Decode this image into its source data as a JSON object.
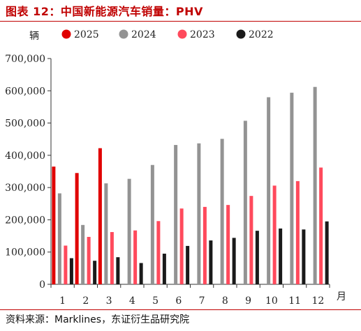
{
  "title": "图表 12：中国新能源汽车销量：PHV",
  "source": "资料来源：Marklines，东证衍生品研究院",
  "chart_data": {
    "type": "bar",
    "title": "中国新能源汽车销量：PHV",
    "ylabel": "辆",
    "xlabel": "月",
    "categories": [
      "1",
      "2",
      "3",
      "4",
      "5",
      "6",
      "7",
      "8",
      "9",
      "10",
      "11",
      "12"
    ],
    "ylim": [
      0,
      700000
    ],
    "yticks": [
      0,
      100000,
      200000,
      300000,
      400000,
      500000,
      600000,
      700000
    ],
    "ytick_labels": [
      "0",
      "100,000",
      "200,000",
      "300,000",
      "400,000",
      "500,000",
      "600,000",
      "700,000"
    ],
    "grid": false,
    "legend_position": "top",
    "series": [
      {
        "name": "2025",
        "color": "#e00000",
        "values": [
          365000,
          345000,
          422000,
          null,
          null,
          null,
          null,
          null,
          null,
          null,
          null,
          null
        ]
      },
      {
        "name": "2024",
        "color": "#939393",
        "values": [
          282000,
          184000,
          313000,
          327000,
          370000,
          432000,
          437000,
          451000,
          507000,
          580000,
          594000,
          612000
        ]
      },
      {
        "name": "2023",
        "color": "#ff4a5c",
        "values": [
          120000,
          147000,
          162000,
          167000,
          196000,
          235000,
          240000,
          246000,
          274000,
          306000,
          320000,
          362000
        ]
      },
      {
        "name": "2022",
        "color": "#1a1a1a",
        "values": [
          81000,
          73000,
          84000,
          66000,
          95000,
          119000,
          136000,
          144000,
          166000,
          173000,
          170000,
          195000
        ]
      }
    ]
  }
}
